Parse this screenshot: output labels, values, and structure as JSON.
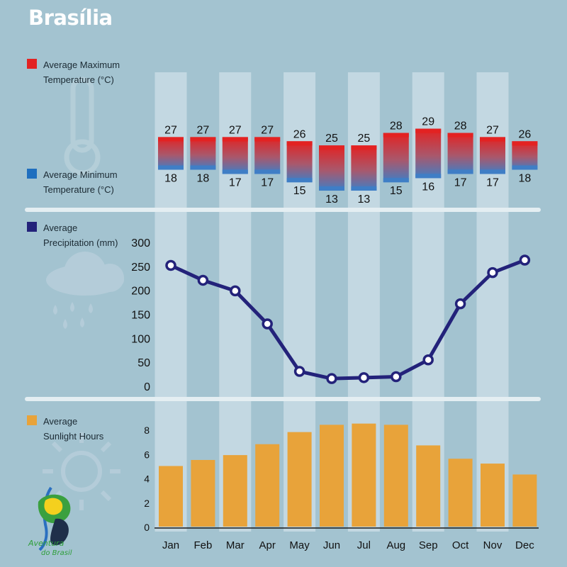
{
  "title": "Brasília",
  "legend": {
    "max_temp": {
      "line1": "Average Maximum",
      "line2": "Temperature (°C)",
      "color": "#e32222"
    },
    "min_temp": {
      "line1": "Average Minimum",
      "line2": "Temperature (°C)",
      "color": "#1f6fbf"
    },
    "precip": {
      "line1": "Average",
      "line2": "Precipitation (mm)",
      "color": "#23227a"
    },
    "sunlight": {
      "line1": "Average",
      "line2": "Sunlight Hours",
      "color": "#e8a33a"
    }
  },
  "logo": {
    "line1": "Aventura",
    "line2": "do Brasil"
  },
  "chart_data": [
    {
      "type": "bar",
      "subtype": "range",
      "categories": [
        "Jan",
        "Feb",
        "Mar",
        "Apr",
        "May",
        "Jun",
        "Jul",
        "Aug",
        "Sep",
        "Oct",
        "Nov",
        "Dec"
      ],
      "series": [
        {
          "name": "Average Maximum Temperature (°C)",
          "values": [
            27,
            27,
            27,
            27,
            26,
            25,
            25,
            28,
            29,
            28,
            27,
            26
          ]
        },
        {
          "name": "Average Minimum Temperature (°C)",
          "values": [
            18,
            18,
            17,
            17,
            15,
            13,
            13,
            15,
            16,
            17,
            17,
            18
          ]
        }
      ]
    },
    {
      "type": "line",
      "categories": [
        "Jan",
        "Feb",
        "Mar",
        "Apr",
        "May",
        "Jun",
        "Jul",
        "Aug",
        "Sep",
        "Oct",
        "Nov",
        "Dec"
      ],
      "series": [
        {
          "name": "Average Precipitation (mm)",
          "values": [
            252,
            221,
            199,
            130,
            31,
            16,
            18,
            20,
            55,
            172,
            237,
            263
          ]
        }
      ],
      "yticks": [
        "0",
        "50",
        "100",
        "150",
        "200",
        "250",
        "300"
      ],
      "ylim": [
        0,
        300
      ]
    },
    {
      "type": "bar",
      "categories": [
        "Jan",
        "Feb",
        "Mar",
        "Apr",
        "May",
        "Jun",
        "Jul",
        "Aug",
        "Sep",
        "Oct",
        "Nov",
        "Dec"
      ],
      "series": [
        {
          "name": "Average Sunlight Hours",
          "values": [
            5.0,
            5.5,
            5.9,
            6.8,
            7.8,
            8.4,
            8.5,
            8.4,
            6.7,
            5.6,
            5.2,
            4.3
          ]
        }
      ],
      "yticks": [
        "0",
        "2",
        "4",
        "6",
        "8"
      ],
      "ylim": [
        0,
        10
      ]
    }
  ],
  "colors": {
    "background": "#a3c3d0",
    "column_band": "#c3d8e2",
    "max_bar": "#e32222",
    "min_bar": "#3f7ec6",
    "precip_line": "#23227a",
    "sun_bar": "#e8a33a",
    "divider": "#e4eef2"
  }
}
